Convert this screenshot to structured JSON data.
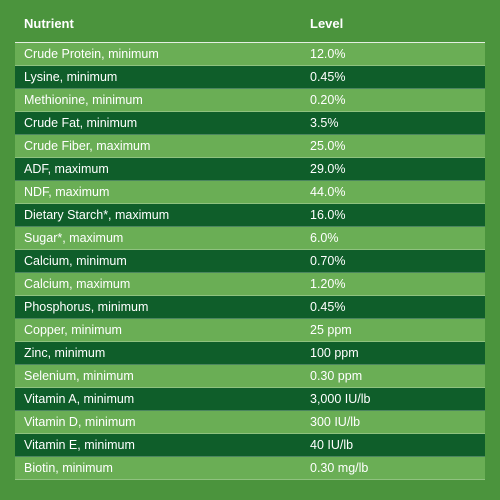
{
  "table": {
    "header": {
      "nutrient": "Nutrient",
      "level": "Level"
    },
    "rows": [
      {
        "nutrient": "Crude Protein, minimum",
        "level": "12.0%"
      },
      {
        "nutrient": "Lysine, minimum",
        "level": "0.45%"
      },
      {
        "nutrient": "Methionine, minimum",
        "level": "0.20%"
      },
      {
        "nutrient": "Crude Fat, minimum",
        "level": "3.5%"
      },
      {
        "nutrient": "Crude Fiber, maximum",
        "level": "25.0%"
      },
      {
        "nutrient": "ADF, maximum",
        "level": "29.0%"
      },
      {
        "nutrient": "NDF, maximum",
        "level": "44.0%"
      },
      {
        "nutrient": "Dietary Starch*, maximum",
        "level": "16.0%"
      },
      {
        "nutrient": "Sugar*, maximum",
        "level": "6.0%"
      },
      {
        "nutrient": "Calcium, minimum",
        "level": "0.70%"
      },
      {
        "nutrient": "Calcium, maximum",
        "level": "1.20%"
      },
      {
        "nutrient": "Phosphorus, minimum",
        "level": "0.45%"
      },
      {
        "nutrient": "Copper, minimum",
        "level": "25 ppm"
      },
      {
        "nutrient": "Zinc, minimum",
        "level": "100 ppm"
      },
      {
        "nutrient": "Selenium, minimum",
        "level": "0.30 ppm"
      },
      {
        "nutrient": "Vitamin A, minimum",
        "level": "3,000 IU/lb"
      },
      {
        "nutrient": "Vitamin D, minimum",
        "level": "300 IU/lb"
      },
      {
        "nutrient": "Vitamin E, minimum",
        "level": "40 IU/lb"
      },
      {
        "nutrient": "Biotin, minimum",
        "level": "0.30 mg/lb"
      }
    ]
  },
  "colors": {
    "background": "#4b943d",
    "row_light": "#6aae55",
    "row_dark": "#0f5e2a",
    "text": "#ffffff"
  }
}
